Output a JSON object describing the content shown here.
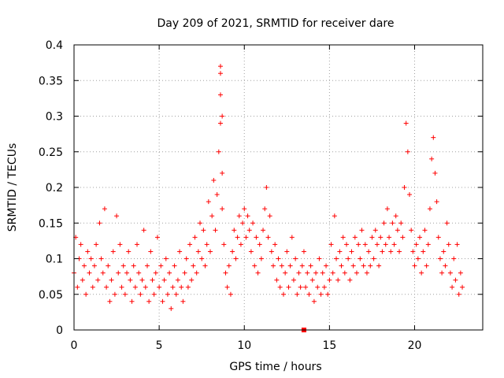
{
  "chart_data": {
    "type": "scatter",
    "title": "Day 209 of 2021, SRMTID for receiver dare",
    "xlabel": "GPS time / hours",
    "ylabel": "SRMTID / TECUs",
    "xlim": [
      0,
      24
    ],
    "ylim": [
      0,
      0.4
    ],
    "x_ticks": [
      0,
      5,
      10,
      15,
      20
    ],
    "x_tick_labels": [
      "0",
      "5",
      "10",
      "15",
      "20"
    ],
    "y_ticks": [
      0,
      0.05,
      0.1,
      0.15,
      0.2,
      0.25,
      0.3,
      0.35,
      0.4
    ],
    "y_tick_labels": [
      "0",
      "0.05",
      "0.1",
      "0.15",
      "0.2",
      "0.25",
      "0.3",
      "0.35",
      "0.4"
    ],
    "grid": true,
    "marker": "plus",
    "color": "#ff0000",
    "series": [
      {
        "name": "SRMTID",
        "x": [
          0.0,
          0.1,
          0.2,
          0.3,
          0.4,
          0.5,
          0.6,
          0.7,
          0.8,
          0.9,
          1.0,
          1.1,
          1.2,
          1.3,
          1.4,
          1.5,
          1.6,
          1.7,
          1.8,
          1.9,
          2.0,
          2.1,
          2.2,
          2.3,
          2.4,
          2.5,
          2.6,
          2.7,
          2.8,
          2.9,
          3.0,
          3.1,
          3.2,
          3.3,
          3.4,
          3.5,
          3.6,
          3.7,
          3.8,
          3.9,
          4.0,
          4.1,
          4.2,
          4.3,
          4.4,
          4.5,
          4.6,
          4.7,
          4.8,
          4.9,
          5.0,
          5.1,
          5.2,
          5.3,
          5.4,
          5.5,
          5.6,
          5.7,
          5.8,
          5.9,
          6.0,
          6.1,
          6.2,
          6.3,
          6.4,
          6.5,
          6.6,
          6.7,
          6.8,
          6.9,
          7.0,
          7.1,
          7.2,
          7.3,
          7.4,
          7.5,
          7.6,
          7.7,
          7.8,
          7.9,
          8.0,
          8.1,
          8.2,
          8.3,
          8.4,
          8.5,
          8.6,
          8.6,
          8.6,
          8.6,
          8.7,
          8.7,
          8.7,
          8.8,
          8.9,
          9.0,
          9.1,
          9.2,
          9.3,
          9.4,
          9.5,
          9.6,
          9.7,
          9.8,
          9.9,
          10.0,
          10.1,
          10.2,
          10.3,
          10.4,
          10.5,
          10.6,
          10.7,
          10.8,
          10.9,
          11.0,
          11.1,
          11.2,
          11.3,
          11.4,
          11.5,
          11.6,
          11.7,
          11.8,
          11.9,
          12.0,
          12.1,
          12.2,
          12.3,
          12.4,
          12.5,
          12.6,
          12.7,
          12.8,
          12.9,
          13.0,
          13.1,
          13.2,
          13.3,
          13.4,
          13.5,
          13.6,
          13.7,
          13.8,
          13.9,
          14.0,
          14.1,
          14.2,
          14.3,
          14.4,
          14.5,
          14.6,
          14.7,
          14.8,
          14.9,
          15.0,
          15.1,
          15.2,
          15.3,
          15.4,
          15.5,
          15.6,
          15.7,
          15.8,
          15.9,
          16.0,
          16.1,
          16.2,
          16.3,
          16.4,
          16.5,
          16.6,
          16.7,
          16.8,
          16.9,
          17.0,
          17.1,
          17.2,
          17.3,
          17.4,
          17.5,
          17.6,
          17.7,
          17.8,
          17.9,
          18.0,
          18.1,
          18.2,
          18.3,
          18.4,
          18.5,
          18.6,
          18.7,
          18.8,
          18.9,
          19.0,
          19.1,
          19.2,
          19.3,
          19.4,
          19.5,
          19.6,
          19.7,
          19.8,
          19.9,
          20.0,
          20.1,
          20.2,
          20.3,
          20.4,
          20.5,
          20.6,
          20.7,
          20.8,
          20.9,
          21.0,
          21.1,
          21.2,
          21.3,
          21.4,
          21.5,
          21.6,
          21.7,
          21.8,
          21.9,
          22.0,
          22.1,
          22.2,
          22.3,
          22.4,
          22.5,
          22.6,
          22.7,
          22.8
        ],
        "y": [
          0.08,
          0.13,
          0.06,
          0.1,
          0.12,
          0.07,
          0.09,
          0.05,
          0.11,
          0.08,
          0.1,
          0.06,
          0.09,
          0.12,
          0.07,
          0.15,
          0.1,
          0.08,
          0.17,
          0.06,
          0.09,
          0.04,
          0.07,
          0.11,
          0.05,
          0.16,
          0.08,
          0.12,
          0.06,
          0.09,
          0.05,
          0.08,
          0.11,
          0.07,
          0.04,
          0.09,
          0.06,
          0.12,
          0.08,
          0.05,
          0.07,
          0.14,
          0.06,
          0.09,
          0.04,
          0.11,
          0.07,
          0.05,
          0.08,
          0.13,
          0.06,
          0.09,
          0.04,
          0.07,
          0.1,
          0.05,
          0.08,
          0.03,
          0.06,
          0.09,
          0.05,
          0.07,
          0.11,
          0.06,
          0.04,
          0.08,
          0.1,
          0.06,
          0.12,
          0.07,
          0.09,
          0.13,
          0.08,
          0.11,
          0.15,
          0.1,
          0.14,
          0.09,
          0.12,
          0.18,
          0.11,
          0.16,
          0.21,
          0.14,
          0.19,
          0.25,
          0.29,
          0.33,
          0.37,
          0.36,
          0.3,
          0.22,
          0.17,
          0.12,
          0.08,
          0.06,
          0.09,
          0.05,
          0.11,
          0.14,
          0.1,
          0.13,
          0.16,
          0.12,
          0.15,
          0.17,
          0.13,
          0.16,
          0.14,
          0.11,
          0.15,
          0.09,
          0.13,
          0.08,
          0.12,
          0.1,
          0.14,
          0.17,
          0.2,
          0.13,
          0.16,
          0.11,
          0.09,
          0.12,
          0.07,
          0.1,
          0.06,
          0.09,
          0.05,
          0.08,
          0.11,
          0.06,
          0.09,
          0.13,
          0.07,
          0.1,
          0.05,
          0.08,
          0.06,
          0.09,
          0.11,
          0.06,
          0.08,
          0.05,
          0.09,
          0.07,
          0.04,
          0.08,
          0.06,
          0.1,
          0.05,
          0.08,
          0.06,
          0.09,
          0.05,
          0.07,
          0.12,
          0.08,
          0.16,
          0.1,
          0.07,
          0.11,
          0.09,
          0.13,
          0.08,
          0.12,
          0.1,
          0.07,
          0.11,
          0.09,
          0.13,
          0.08,
          0.12,
          0.1,
          0.14,
          0.09,
          0.12,
          0.08,
          0.11,
          0.09,
          0.13,
          0.1,
          0.14,
          0.12,
          0.09,
          0.13,
          0.11,
          0.15,
          0.12,
          0.17,
          0.13,
          0.11,
          0.15,
          0.12,
          0.16,
          0.14,
          0.11,
          0.15,
          0.13,
          0.2,
          0.29,
          0.25,
          0.19,
          0.14,
          0.11,
          0.09,
          0.12,
          0.1,
          0.13,
          0.08,
          0.11,
          0.14,
          0.09,
          0.12,
          0.17,
          0.24,
          0.27,
          0.22,
          0.18,
          0.13,
          0.1,
          0.08,
          0.11,
          0.09,
          0.15,
          0.12,
          0.08,
          0.06,
          0.1,
          0.07,
          0.12,
          0.05,
          0.08,
          0.06
        ]
      }
    ],
    "annotations": [
      {
        "text": "",
        "x": 13.5,
        "y": 0.0,
        "marker": "square"
      }
    ]
  }
}
